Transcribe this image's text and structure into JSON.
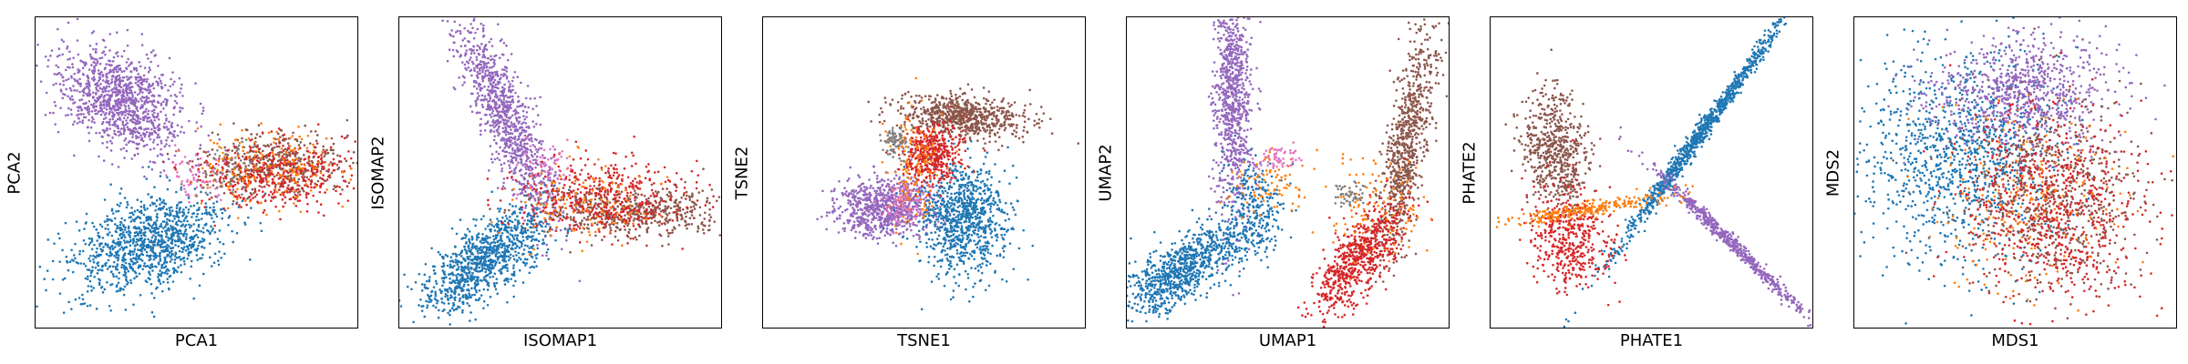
{
  "figure": {
    "colors": {
      "blue": "#1f77b4",
      "orange": "#ff7f0e",
      "red": "#d62728",
      "purple": "#9467bd",
      "brown": "#8c564b",
      "pink": "#e377c2",
      "gray": "#7f7f7f"
    }
  },
  "chart_data": [
    {
      "type": "scatter",
      "xlabel": "PCA1",
      "ylabel": "PCA2",
      "ticks": "none",
      "series": [
        {
          "color": "#9467bd",
          "clusters": [
            {
              "cx": 0.27,
              "cy": 0.73,
              "sx": 0.11,
              "sy": 0.07,
              "angle": -35,
              "n": 1100
            }
          ]
        },
        {
          "color": "#1f77b4",
          "clusters": [
            {
              "cx": 0.35,
              "cy": 0.27,
              "sx": 0.13,
              "sy": 0.07,
              "angle": 20,
              "n": 1100
            }
          ]
        },
        {
          "color": "#8c564b",
          "clusters": [
            {
              "cx": 0.76,
              "cy": 0.53,
              "sx": 0.11,
              "sy": 0.05,
              "angle": 0,
              "n": 450
            }
          ]
        },
        {
          "color": "#d62728",
          "clusters": [
            {
              "cx": 0.74,
              "cy": 0.49,
              "sx": 0.11,
              "sy": 0.055,
              "angle": 0,
              "n": 450
            }
          ]
        },
        {
          "color": "#ff7f0e",
          "clusters": [
            {
              "cx": 0.72,
              "cy": 0.52,
              "sx": 0.11,
              "sy": 0.06,
              "angle": 0,
              "n": 180
            }
          ]
        },
        {
          "color": "#7f7f7f",
          "clusters": [
            {
              "cx": 0.6,
              "cy": 0.5,
              "sx": 0.05,
              "sy": 0.04,
              "angle": 0,
              "n": 60
            }
          ]
        },
        {
          "color": "#e377c2",
          "clusters": [
            {
              "cx": 0.5,
              "cy": 0.49,
              "sx": 0.05,
              "sy": 0.04,
              "angle": 0,
              "n": 60
            }
          ]
        }
      ]
    },
    {
      "type": "scatter",
      "xlabel": "ISOMAP1",
      "ylabel": "ISOMAP2",
      "ticks": "none",
      "series": [
        {
          "color": "#9467bd",
          "clusters": [
            {
              "cx": 0.33,
              "cy": 0.68,
              "sx": 0.04,
              "sy": 0.17,
              "angle": 22,
              "n": 1000
            }
          ]
        },
        {
          "color": "#1f77b4",
          "clusters": [
            {
              "cx": 0.27,
              "cy": 0.22,
              "sx": 0.12,
              "sy": 0.05,
              "angle": 40,
              "n": 1000
            }
          ]
        },
        {
          "color": "#8c564b",
          "clusters": [
            {
              "cx": 0.72,
              "cy": 0.37,
              "sx": 0.15,
              "sy": 0.04,
              "angle": 0,
              "n": 550
            }
          ]
        },
        {
          "color": "#d62728",
          "clusters": [
            {
              "cx": 0.63,
              "cy": 0.42,
              "sx": 0.14,
              "sy": 0.06,
              "angle": 0,
              "n": 450
            }
          ]
        },
        {
          "color": "#ff7f0e",
          "clusters": [
            {
              "cx": 0.58,
              "cy": 0.4,
              "sx": 0.12,
              "sy": 0.06,
              "angle": 0,
              "n": 120
            }
          ]
        },
        {
          "color": "#e377c2",
          "clusters": [
            {
              "cx": 0.46,
              "cy": 0.5,
              "sx": 0.04,
              "sy": 0.05,
              "angle": 0,
              "n": 60
            }
          ]
        }
      ]
    },
    {
      "type": "scatter",
      "xlabel": "TSNE1",
      "ylabel": "TSNE2",
      "ticks": "none",
      "series": [
        {
          "color": "#9467bd",
          "clusters": [
            {
              "cx": 0.38,
              "cy": 0.39,
              "sx": 0.08,
              "sy": 0.045,
              "angle": 5,
              "n": 800
            }
          ]
        },
        {
          "color": "#1f77b4",
          "clusters": [
            {
              "cx": 0.62,
              "cy": 0.35,
              "sx": 0.07,
              "sy": 0.09,
              "angle": 0,
              "n": 900
            }
          ]
        },
        {
          "color": "#8c564b",
          "clusters": [
            {
              "cx": 0.61,
              "cy": 0.68,
              "sx": 0.1,
              "sy": 0.035,
              "angle": -5,
              "n": 700
            }
          ]
        },
        {
          "color": "#d62728",
          "clusters": [
            {
              "cx": 0.52,
              "cy": 0.56,
              "sx": 0.045,
              "sy": 0.05,
              "angle": 0,
              "n": 450
            }
          ]
        },
        {
          "color": "#ff7f0e",
          "clusters": [
            {
              "cx": 0.47,
              "cy": 0.52,
              "sx": 0.04,
              "sy": 0.1,
              "angle": 0,
              "n": 160
            }
          ]
        },
        {
          "color": "#7f7f7f",
          "clusters": [
            {
              "cx": 0.41,
              "cy": 0.6,
              "sx": 0.02,
              "sy": 0.025,
              "angle": 0,
              "n": 80
            }
          ]
        },
        {
          "color": "#e377c2",
          "clusters": [
            {
              "cx": 0.43,
              "cy": 0.39,
              "sx": 0.035,
              "sy": 0.03,
              "angle": 0,
              "n": 80
            }
          ]
        }
      ]
    },
    {
      "type": "scatter",
      "xlabel": "UMAP1",
      "ylabel": "UMAP2",
      "ticks": "none",
      "series": [
        {
          "color": "#9467bd",
          "clusters": [
            {
              "cx": 0.33,
              "cy": 0.74,
              "sx": 0.03,
              "sy": 0.2,
              "angle": 0,
              "n": 900
            }
          ]
        },
        {
          "color": "#1f77b4",
          "clusters": [
            {
              "cx": 0.18,
              "cy": 0.19,
              "sx": 0.12,
              "sy": 0.045,
              "angle": 35,
              "n": 900
            },
            {
              "cx": 0.4,
              "cy": 0.38,
              "sx": 0.05,
              "sy": 0.07,
              "angle": 0,
              "n": 250
            }
          ]
        },
        {
          "color": "#8c564b",
          "clusters": [
            {
              "cx": 0.87,
              "cy": 0.6,
              "sx": 0.03,
              "sy": 0.18,
              "angle": -10,
              "n": 800
            }
          ]
        },
        {
          "color": "#d62728",
          "clusters": [
            {
              "cx": 0.72,
              "cy": 0.22,
              "sx": 0.11,
              "sy": 0.04,
              "angle": 55,
              "n": 700
            }
          ]
        },
        {
          "color": "#ff7f0e",
          "clusters": [
            {
              "cx": 0.76,
              "cy": 0.38,
              "sx": 0.09,
              "sy": 0.08,
              "angle": 0,
              "n": 120
            },
            {
              "cx": 0.44,
              "cy": 0.47,
              "sx": 0.06,
              "sy": 0.06,
              "angle": 0,
              "n": 80
            }
          ]
        },
        {
          "color": "#7f7f7f",
          "clusters": [
            {
              "cx": 0.69,
              "cy": 0.43,
              "sx": 0.025,
              "sy": 0.02,
              "angle": 0,
              "n": 50
            }
          ]
        },
        {
          "color": "#e377c2",
          "clusters": [
            {
              "cx": 0.47,
              "cy": 0.55,
              "sx": 0.03,
              "sy": 0.02,
              "angle": 0,
              "n": 60
            }
          ]
        }
      ]
    },
    {
      "type": "scatter",
      "xlabel": "PHATE1",
      "ylabel": "PHATE2",
      "ticks": "none",
      "series": [
        {
          "color": "#1f77b4",
          "clusters": [
            {
              "cx": 0.65,
              "cy": 0.62,
              "sx": 0.25,
              "sy": 0.012,
              "angle": 55,
              "n": 1000
            }
          ]
        },
        {
          "color": "#9467bd",
          "clusters": [
            {
              "cx": 0.75,
              "cy": 0.27,
              "sx": 0.17,
              "sy": 0.01,
              "angle": -45,
              "n": 600
            }
          ]
        },
        {
          "color": "#8c564b",
          "clusters": [
            {
              "cx": 0.2,
              "cy": 0.57,
              "sx": 0.05,
              "sy": 0.1,
              "angle": 10,
              "n": 600
            }
          ]
        },
        {
          "color": "#d62728",
          "clusters": [
            {
              "cx": 0.25,
              "cy": 0.29,
              "sx": 0.06,
              "sy": 0.08,
              "angle": 10,
              "n": 450
            }
          ]
        },
        {
          "color": "#ff7f0e",
          "clusters": [
            {
              "cx": 0.3,
              "cy": 0.38,
              "sx": 0.13,
              "sy": 0.012,
              "angle": 10,
              "n": 250
            }
          ]
        }
      ]
    },
    {
      "type": "scatter",
      "xlabel": "MDS1",
      "ylabel": "MDS2",
      "ticks": "none",
      "series": [
        {
          "color": "#1f77b4",
          "clusters": [
            {
              "cx": 0.32,
              "cy": 0.55,
              "sx": 0.16,
              "sy": 0.17,
              "angle": 0,
              "n": 1100
            }
          ]
        },
        {
          "color": "#9467bd",
          "clusters": [
            {
              "cx": 0.53,
              "cy": 0.76,
              "sx": 0.14,
              "sy": 0.09,
              "angle": 0,
              "n": 800
            }
          ]
        },
        {
          "color": "#8c564b",
          "clusters": [
            {
              "cx": 0.62,
              "cy": 0.42,
              "sx": 0.13,
              "sy": 0.15,
              "angle": 0,
              "n": 700
            }
          ]
        },
        {
          "color": "#d62728",
          "clusters": [
            {
              "cx": 0.63,
              "cy": 0.38,
              "sx": 0.14,
              "sy": 0.15,
              "angle": 0,
              "n": 700
            }
          ]
        },
        {
          "color": "#ff7f0e",
          "clusters": [
            {
              "cx": 0.55,
              "cy": 0.4,
              "sx": 0.15,
              "sy": 0.15,
              "angle": 0,
              "n": 200
            }
          ]
        }
      ]
    }
  ]
}
